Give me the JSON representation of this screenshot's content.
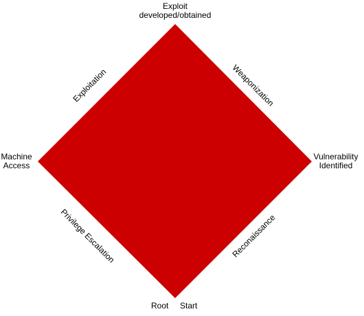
{
  "diagram": {
    "fill_color": "#cc0000",
    "vertices": {
      "top": [
        "Exploit",
        "developed/obtained"
      ],
      "right": [
        "Vulnerability",
        "Identified"
      ],
      "left": [
        "Machine",
        "Access"
      ],
      "bottom_left": "Root",
      "bottom_right": "Start"
    },
    "edges": {
      "top_left": "Exploitation",
      "top_right": "Weaponization",
      "bottom_right": "Reconaissance",
      "bottom_left": "Privilege Escalation"
    }
  }
}
